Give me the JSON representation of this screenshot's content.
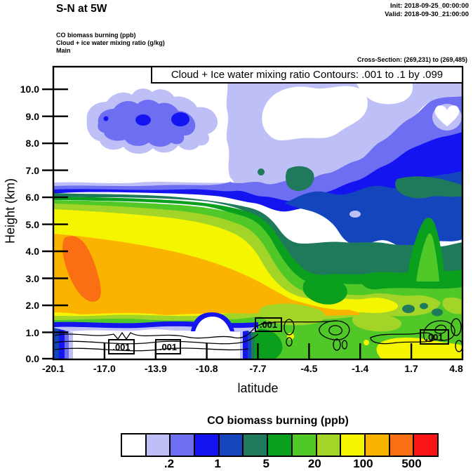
{
  "header": {
    "title": "S-N at 5W",
    "init_label": "Init: 2018-09-25_00:00:00",
    "valid_label": "Valid: 2018-09-30_21:00:00",
    "field_line1": "CO biomass burning   (ppb)",
    "field_line2": "Cloud + ice water mixing ratio   (g/kg)",
    "field_line3": "Main",
    "cross_section": "Cross-Section: (269,231) to (269,485)"
  },
  "plot": {
    "contour_title": "Cloud + Ice water mixing ratio Contours: .001 to .1 by .099",
    "y_axis": {
      "label": "Height (km)",
      "ticks": [
        "10.0",
        "9.0",
        "8.0",
        "7.0",
        "6.0",
        "5.0",
        "4.0",
        "3.0",
        "2.0",
        "1.0",
        "0.0"
      ]
    },
    "x_axis": {
      "label": "latitude",
      "ticks": [
        "-20.1",
        "-17.0",
        "-13.9",
        "-10.8",
        "-7.7",
        "-4.5",
        "-1.4",
        "1.7",
        "4.8"
      ]
    },
    "contour_labels": [
      ".001",
      ".001",
      ".001",
      ".001"
    ]
  },
  "colorbar": {
    "title": "CO biomass burning  (ppb)",
    "tick_labels": [
      ".2",
      "1",
      "5",
      "20",
      "100",
      "500"
    ],
    "colors": [
      "#ffffff",
      "#bfbff7",
      "#6e6ef2",
      "#1414f0",
      "#1545bd",
      "#1e7a5a",
      "#0aa01e",
      "#50c828",
      "#a3d528",
      "#f5f500",
      "#fab400",
      "#fa6e14",
      "#fa1414"
    ]
  },
  "chart_data": {
    "type": "heatmap",
    "title": "S-N at 5W",
    "subtitle": "Cloud + Ice water mixing ratio Contours: .001 to .1 by .099",
    "xlabel": "latitude",
    "ylabel": "Height (km)",
    "xlim": [
      -20.1,
      4.8
    ],
    "ylim": [
      0.0,
      10.8
    ],
    "x_ticks": [
      -20.1,
      -17.0,
      -13.9,
      -10.8,
      -7.7,
      -4.5,
      -1.4,
      1.7,
      4.8
    ],
    "y_ticks": [
      0,
      1,
      2,
      3,
      4,
      5,
      6,
      7,
      8,
      9,
      10
    ],
    "fill_variable": "CO biomass burning (ppb)",
    "fill_level_boundaries": [
      0.1,
      0.2,
      0.5,
      1,
      2,
      5,
      10,
      20,
      50,
      100,
      200,
      500
    ],
    "fill_colors": [
      "#ffffff",
      "#bfbff7",
      "#6e6ef2",
      "#1414f0",
      "#1545bd",
      "#1e7a5a",
      "#0aa01e",
      "#50c828",
      "#a3d528",
      "#f5f500",
      "#fab400",
      "#fa6e14",
      "#fa1414"
    ],
    "overlay_contour_variable": "Cloud + ice water mixing ratio (g/kg)",
    "overlay_contour_levels": [
      0.001,
      0.1
    ],
    "features": [
      "Orange CO plume (100-500 ppb) from latitude -20.1 to about -5 between 1.5 and 5 km, peak >200 ppb blob near -18.5 at 3-4.5 km",
      "Near-surface clean white layer (<0.1 ppb) below ~1 km from -20.1 to about -5 outlined by .001 g/kg cloud-water contour lines",
      "Blue cloud-ice blob aloft at 8-9.5 km between -17.5 and -12",
      "Moderate CO (1-20 ppb) with embedded cloud at 6-10 km on the north (right) side",
      "Green/yellow CO (5-100 ppb) at low levels north of -5, yellow near surface at 1.7 to 4.8"
    ]
  }
}
